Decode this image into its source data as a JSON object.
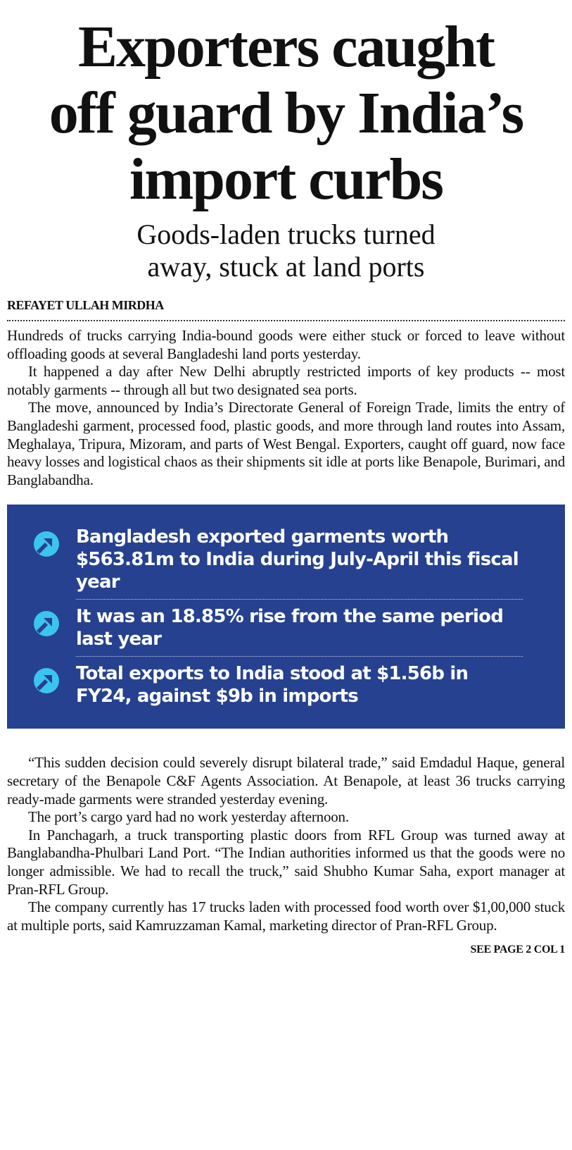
{
  "headline": {
    "line1": "Exporters caught",
    "line2": "off guard by India’s",
    "line3": "import curbs"
  },
  "subhead": {
    "line1": "Goods-laden trucks turned",
    "line2": "away, stuck at land ports"
  },
  "byline": "REFAYET ULLAH MIRDHA",
  "body1": [
    "Hundreds of trucks carrying India-bound goods were either stuck or forced to leave without offloading goods at several Bangladeshi land ports yesterday.",
    "It happened a day after New Delhi abruptly restricted imports of key products -- most notably garments -- through all but two designated sea ports.",
    "The move, announced by India’s Directorate General of Foreign Trade, limits the entry of Bangladeshi garment, processed food, plastic goods, and more through land routes into Assam, Meghalaya, Tripura, Mizoram, and parts of West Bengal. Exporters, caught off guard, now face heavy losses and logistical chaos as their shipments sit idle at ports like Benapole, Burimari, and Banglabandha."
  ],
  "highlights": {
    "accent_color": "#26418f",
    "icon_color": "#3cc4f0",
    "icon": "arrow-up-right-circle-icon",
    "items": [
      "Bangladesh exported garments worth $563.81m to India during July-April this fiscal year",
      "It was an 18.85% rise from the same period last year",
      "Total exports to India stood at $1.56b in FY24, against $9b in imports"
    ]
  },
  "body2": [
    "“This sudden decision could severely disrupt bilateral trade,” said Emdadul Haque, general secretary of the Benapole C&F Agents Association. At Benapole, at least 36 trucks carrying ready-made garments were stranded yesterday evening.",
    "The port’s cargo yard had no work yesterday afternoon.",
    "In Panchagarh, a truck transporting plastic doors from RFL Group was turned away at Banglabandha-Phulbari Land Port. “The Indian authorities informed us that the goods were no longer admissible. We had to recall the truck,” said Shubho Kumar Saha, export manager at Pran-RFL Group.",
    "The company currently has 17 trucks laden with processed food worth over $1,00,000 stuck at multiple ports, said Kamruzzaman Kamal, marketing director of Pran-RFL Group."
  ],
  "footer": "SEE PAGE 2 COL 1"
}
